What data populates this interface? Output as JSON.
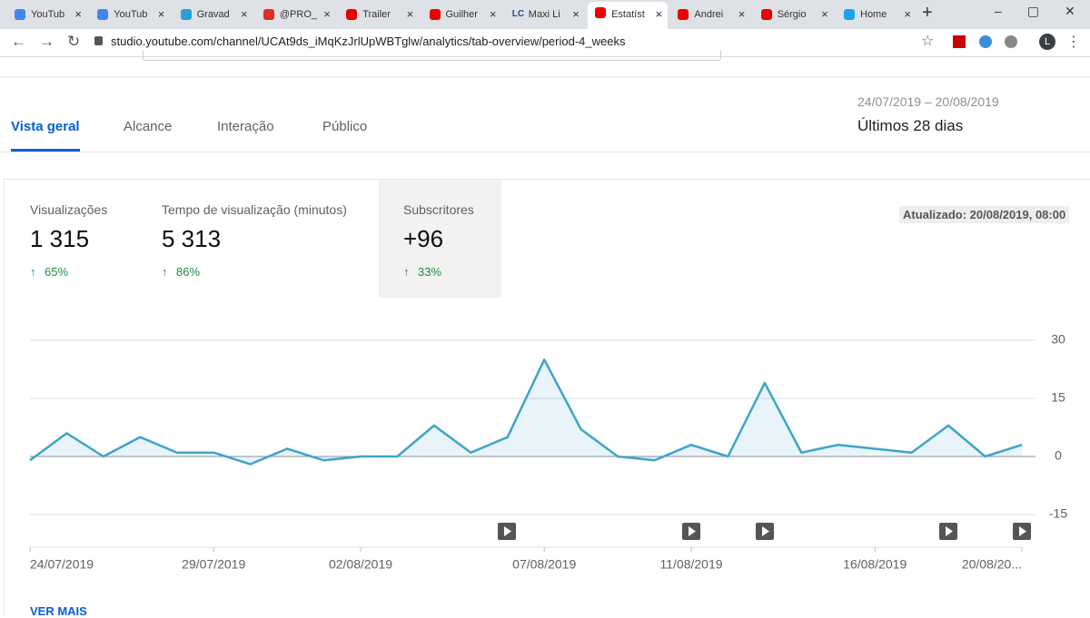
{
  "browser": {
    "tabs": [
      {
        "title": "YouTub"
      },
      {
        "title": "YouTub"
      },
      {
        "title": "Gravad"
      },
      {
        "title": "@PRO_"
      },
      {
        "title": "Trailer"
      },
      {
        "title": "Guilher"
      },
      {
        "icon_text": "LC",
        "title": "Maxi Li"
      },
      {
        "title": "Estatíst"
      },
      {
        "title": "Andrei"
      },
      {
        "title": "Sérgio"
      },
      {
        "title": "Home"
      }
    ],
    "url": "studio.youtube.com/channel/UCAt9ds_iMqKzJrlUpWBTglw/analytics/tab-overview/period-4_weeks",
    "profile_initial": "L"
  },
  "nav_tabs": [
    "Vista geral",
    "Alcance",
    "Interação",
    "Público"
  ],
  "date_range": "24/07/2019 – 20/08/2019",
  "period": "Últimos 28 dias",
  "metrics": [
    {
      "label": "Visualizações",
      "value": "1 315",
      "change": "65%"
    },
    {
      "label": "Tempo de visualização (minutos)",
      "value": "5 313",
      "change": "86%"
    },
    {
      "label": "Subscritores",
      "value": "+96",
      "change": "33%"
    }
  ],
  "updated": "Atualizado: 20/08/2019, 08:00",
  "see_more": "VER MAIS",
  "chart_data": {
    "type": "line",
    "categories": [
      "24/07/2019",
      null,
      null,
      null,
      null,
      "29/07/2019",
      null,
      null,
      null,
      "02/08/2019",
      null,
      null,
      null,
      null,
      "07/08/2019",
      null,
      null,
      null,
      "11/08/2019",
      null,
      null,
      null,
      null,
      "16/08/2019",
      null,
      null,
      null,
      "20/08/20..."
    ],
    "series": [
      {
        "color": "#3fa3cc",
        "values": [
          -1,
          6,
          0,
          5,
          1,
          1,
          -2,
          2,
          -1,
          0,
          0,
          8,
          1,
          5,
          25,
          7,
          0,
          -1,
          3,
          0,
          19,
          1,
          3,
          2,
          1,
          8,
          0,
          3
        ]
      }
    ],
    "ylim": [
      -15,
      30
    ],
    "yticks": [
      30,
      15,
      0,
      -15
    ],
    "grid": true
  }
}
